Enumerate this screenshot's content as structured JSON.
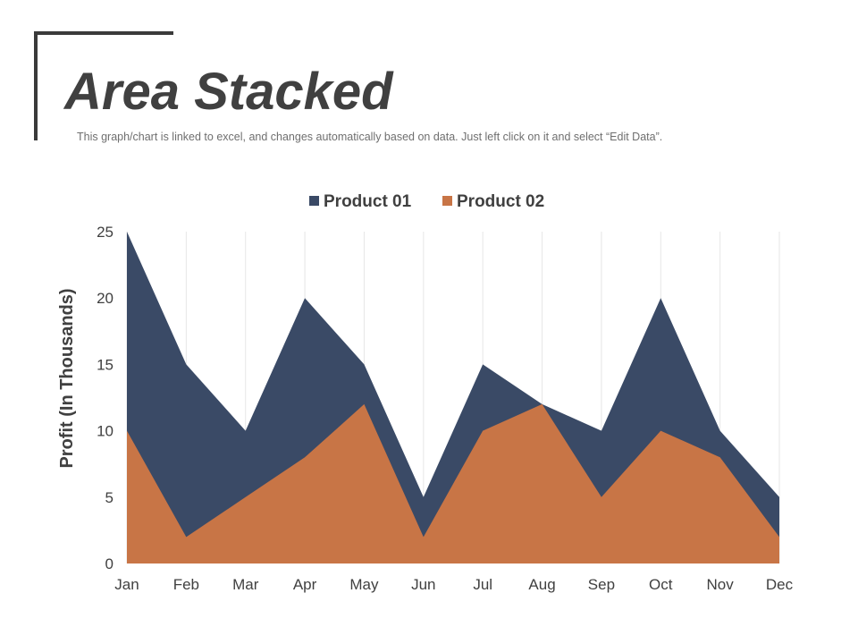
{
  "header": {
    "title": "Area Stacked",
    "subtitle": "This graph/chart is linked to excel, and changes automatically based on data. Just left click on it and select “Edit Data”."
  },
  "colors": {
    "product01": "#3a4a66",
    "product02": "#c87546",
    "gridline": "#e6e6e6",
    "text": "#404040"
  },
  "chart_data": {
    "type": "area",
    "stacked": true,
    "categories": [
      "Jan",
      "Feb",
      "Mar",
      "Apr",
      "May",
      "Jun",
      "Jul",
      "Aug",
      "Sep",
      "Oct",
      "Nov",
      "Dec"
    ],
    "series": [
      {
        "name": "Product 01",
        "values": [
          15,
          13,
          5,
          12,
          3,
          3,
          5,
          0,
          5,
          10,
          2,
          3
        ]
      },
      {
        "name": "Product 02",
        "values": [
          10,
          2,
          5,
          8,
          12,
          2,
          10,
          12,
          5,
          10,
          8,
          2
        ]
      }
    ],
    "ylabel": "Profit (In Thousands)",
    "xlabel": "",
    "ylim": [
      0,
      25
    ],
    "yticks": [
      0,
      5,
      10,
      15,
      20,
      25
    ],
    "grid": "vertical",
    "legend": "top"
  }
}
